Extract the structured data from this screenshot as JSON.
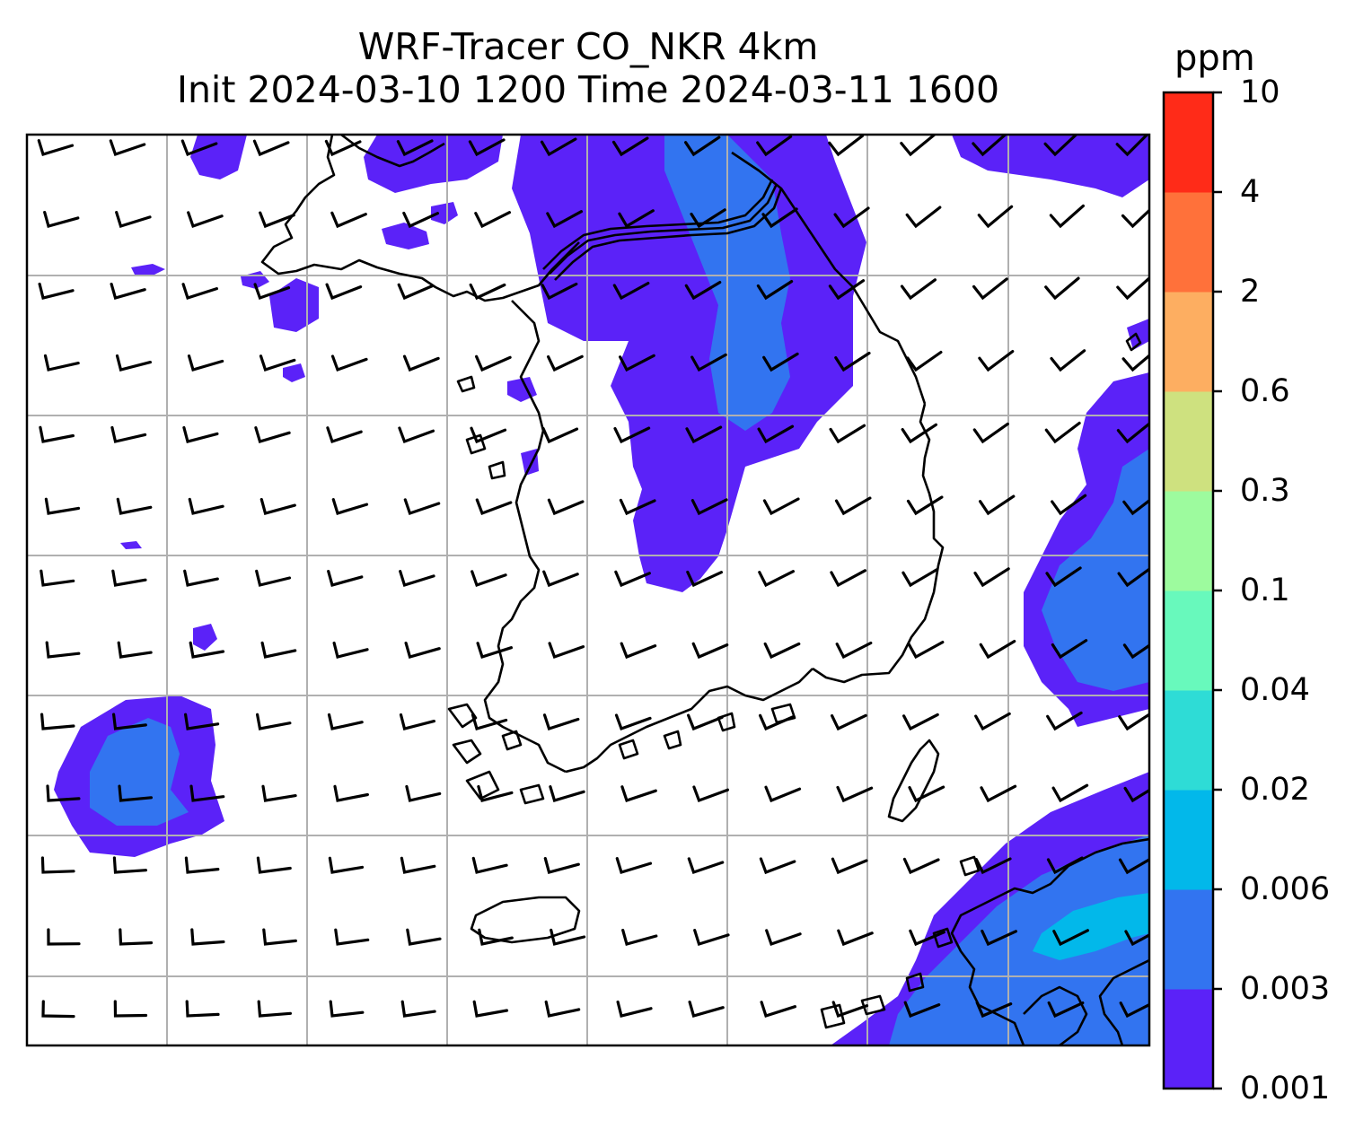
{
  "title": {
    "line1": "WRF-Tracer CO_NKR 4km",
    "line2": "Init 2024-03-10 1200 Time 2024-03-11 1600"
  },
  "colorbar": {
    "unit": "ppm",
    "levels": [
      "0.001",
      "0.003",
      "0.006",
      "0.02",
      "0.04",
      "0.1",
      "0.3",
      "0.6",
      "2",
      "4",
      "10"
    ],
    "colors": [
      "#5b22f8",
      "#3274f0",
      "#02b8ea",
      "#2edcd6",
      "#68f9bc",
      "#9dfb9e",
      "#cee17f",
      "#fdae61",
      "#ff713a",
      "#ff2b18"
    ]
  },
  "map": {
    "field": "CO tracer concentration",
    "overlays": [
      "coastlines",
      "wind-barbs",
      "lat-lon-gridlines"
    ],
    "grid_color": "#b0b0b0"
  }
}
